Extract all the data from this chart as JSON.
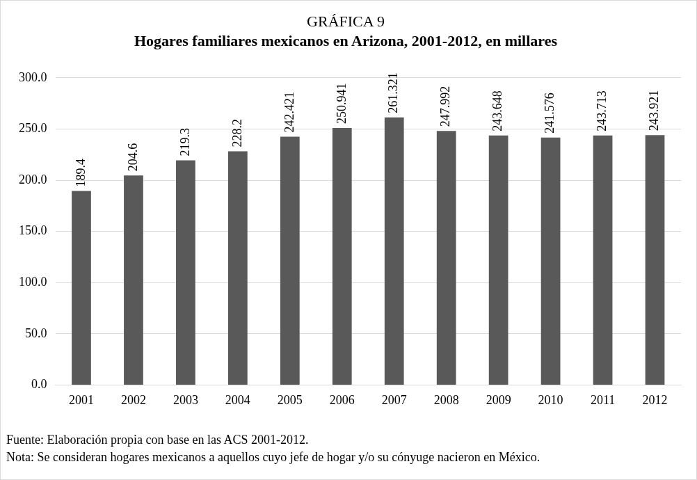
{
  "chart_data": {
    "type": "bar",
    "title": "GRÁFICA 9",
    "subtitle": "Hogares familiares mexicanos en Arizona, 2001-2012, en millares",
    "categories": [
      "2001",
      "2002",
      "2003",
      "2004",
      "2005",
      "2006",
      "2007",
      "2008",
      "2009",
      "2010",
      "2011",
      "2012"
    ],
    "values": [
      189.4,
      204.6,
      219.3,
      228.2,
      242.421,
      250.941,
      261.321,
      247.992,
      243.648,
      241.576,
      243.713,
      243.921
    ],
    "color": "#595959",
    "ylim": [
      0,
      300
    ],
    "yticks": [
      {
        "value": 0,
        "label": "0.0"
      },
      {
        "value": 50,
        "label": "50.0"
      },
      {
        "value": 100,
        "label": "100.0"
      },
      {
        "value": 150,
        "label": "150.0"
      },
      {
        "value": 200,
        "label": "200.0"
      },
      {
        "value": 250,
        "label": "250.0"
      },
      {
        "value": 300,
        "label": "300.0"
      }
    ],
    "grid": "y",
    "legend": false,
    "data_labels": true,
    "annotations": [
      "Fuente: Elaboración propia con base en las ACS 2001-2012.",
      "Nota: Se consideran hogares mexicanos a aquellos cuyo jefe de hogar y/o su cónyuge nacieron en México."
    ]
  }
}
